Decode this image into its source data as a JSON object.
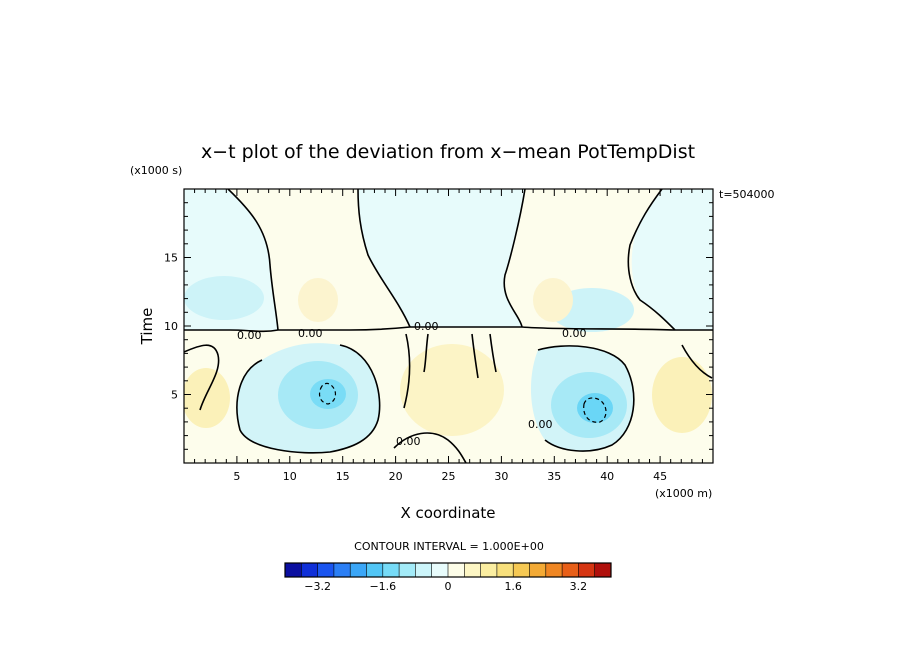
{
  "chart_data": {
    "type": "heatmap",
    "title": "x−t plot of the deviation from x−mean PotTempDist",
    "xlabel": "X coordinate",
    "ylabel": "Time",
    "x_unit": "(x1000 m)",
    "y_unit": "(x1000 s)",
    "time_stamp": "t=504000",
    "xlim": [
      0,
      50
    ],
    "ylim": [
      0,
      20
    ],
    "x_ticks": [
      5,
      10,
      15,
      20,
      25,
      30,
      35,
      40,
      45
    ],
    "y_ticks": [
      5,
      10,
      15
    ],
    "x_tick_labels": [
      "5",
      "10",
      "15",
      "20",
      "25",
      "30",
      "35",
      "40",
      "45"
    ],
    "y_tick_labels": [
      "5",
      "10",
      "15"
    ],
    "contour_interval_label": "CONTOUR INTERVAL = 1.000E+00",
    "contour_labels": [
      "0.00",
      "0.00",
      "0.00",
      "0.00",
      "0.00",
      "0.00"
    ],
    "colorbar": {
      "range": [
        -4,
        4
      ],
      "ticks": [
        -3.2,
        -1.6,
        0,
        1.6,
        3.2
      ],
      "tick_labels": [
        "−3.2",
        "−1.6",
        "0",
        "1.6",
        "3.2"
      ],
      "colors": [
        "#0b0fa0",
        "#0f2fd8",
        "#1a55f0",
        "#2b7ff5",
        "#3aa6f7",
        "#52c6f6",
        "#76dbf7",
        "#a3ebf8",
        "#ccf5fa",
        "#e8fcfc",
        "#fdfde8",
        "#fdf6c4",
        "#fbeea1",
        "#f8e07c",
        "#f6c954",
        "#f3aa35",
        "#ef8623",
        "#e85f18",
        "#d63512",
        "#b0100c"
      ]
    },
    "features": [
      {
        "x": 14,
        "y": 5,
        "value": -1.8,
        "sign": "negative"
      },
      {
        "x": 39,
        "y": 4,
        "value": -2.2,
        "sign": "negative"
      },
      {
        "x": 25,
        "y": 6,
        "value": 1.0,
        "sign": "positive"
      },
      {
        "x": 4,
        "y": 4,
        "value": 0.8,
        "sign": "positive"
      },
      {
        "x": 46,
        "y": 4,
        "value": 0.6,
        "sign": "positive"
      }
    ]
  }
}
